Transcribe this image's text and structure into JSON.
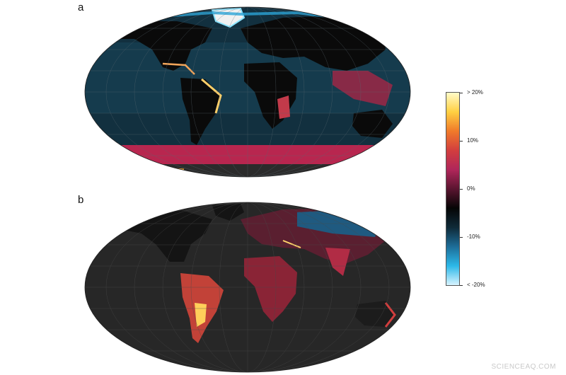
{
  "panels": [
    {
      "label": "a"
    },
    {
      "label": "b"
    }
  ],
  "legend": {
    "colors": [
      "#fffbc8",
      "#ffd042",
      "#f07a2a",
      "#d23e3e",
      "#b0265a",
      "#5a1530",
      "#050505",
      "#0f2a38",
      "#1d6d98",
      "#2cb8e8",
      "#d8f4ff"
    ],
    "ticks": [
      {
        "label": "> 20%"
      },
      {
        "label": "10%"
      },
      {
        "label": "0%"
      },
      {
        "label": "-10%"
      },
      {
        "label": "< -20%"
      }
    ]
  },
  "watermark": "SCIENCEAQ.COM"
}
